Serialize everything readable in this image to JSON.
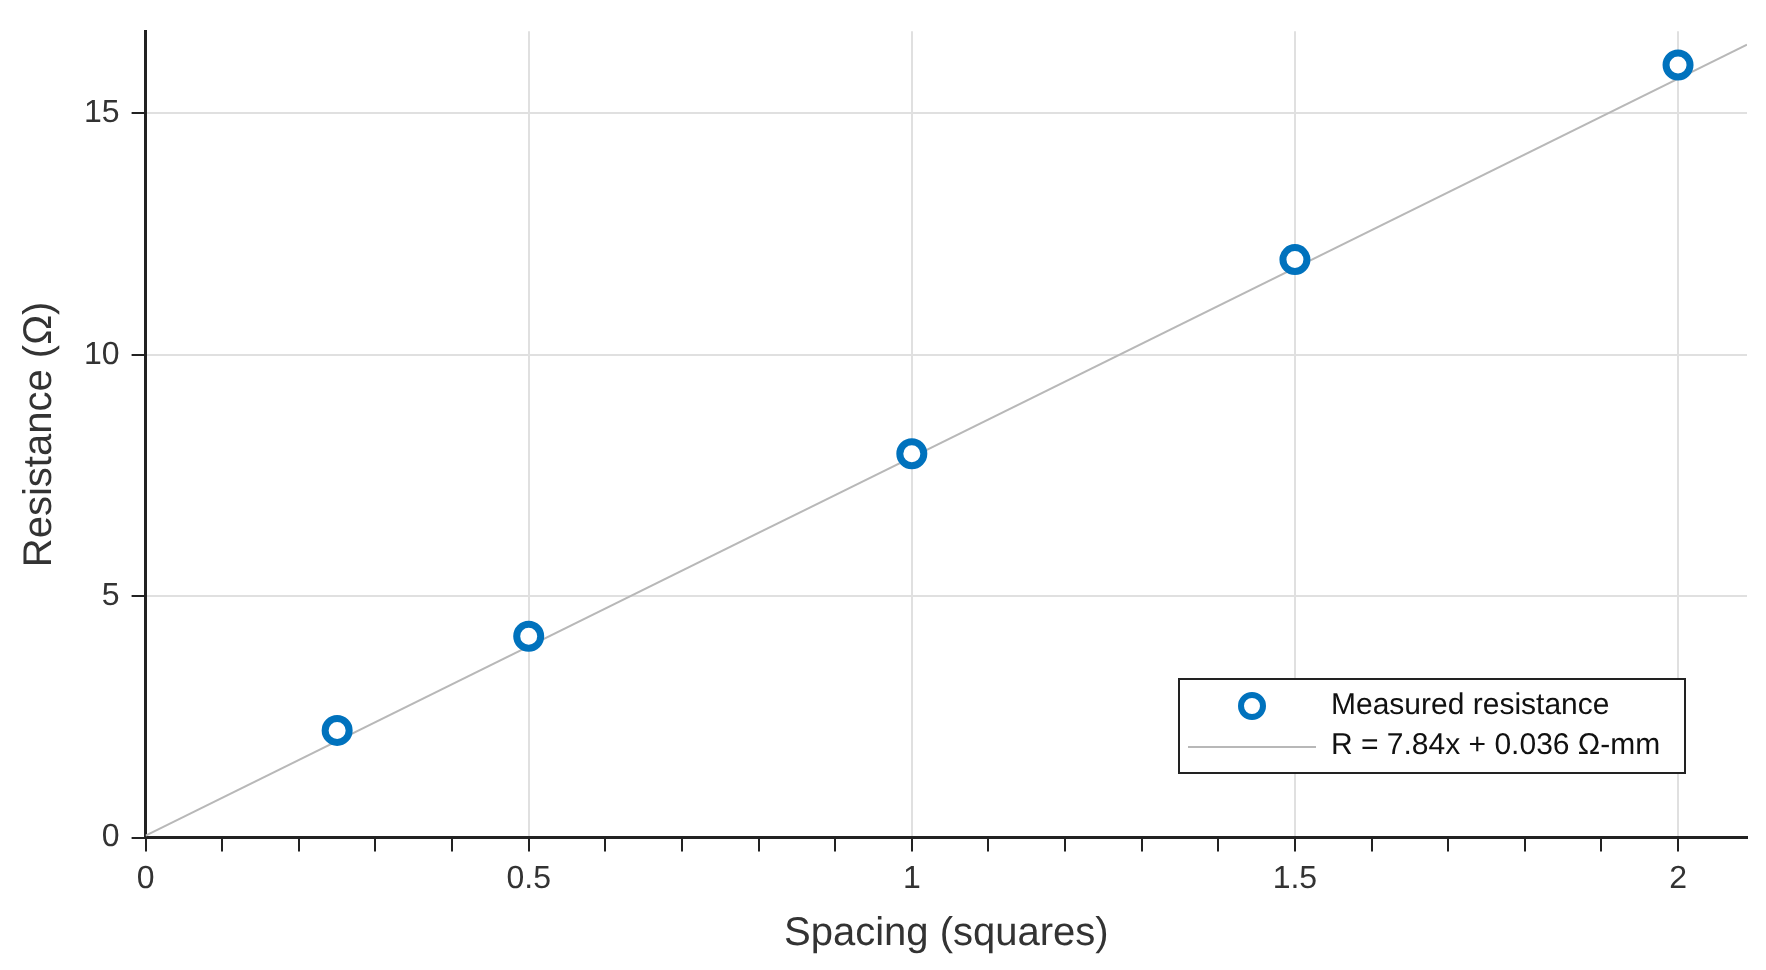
{
  "chart_data": {
    "type": "scatter",
    "xlabel": "Spacing (squares)",
    "ylabel": "Resistance (Ω)",
    "xlim": [
      0,
      2.09
    ],
    "ylim": [
      0,
      16.7
    ],
    "xticks": [
      0,
      {
        "value": 0.1,
        "label": null
      },
      {
        "value": 0.2,
        "label": null
      },
      {
        "value": 0.3,
        "label": null
      },
      {
        "value": 0.4,
        "label": null
      },
      0.5,
      {
        "value": 0.6,
        "label": null
      },
      {
        "value": 0.7,
        "label": null
      },
      {
        "value": 0.8,
        "label": null
      },
      {
        "value": 0.9,
        "label": null
      },
      1,
      {
        "value": 1.1,
        "label": null
      },
      {
        "value": 1.2,
        "label": null
      },
      {
        "value": 1.3,
        "label": null
      },
      {
        "value": 1.4,
        "label": null
      },
      1.5,
      {
        "value": 1.6,
        "label": null
      },
      {
        "value": 1.7,
        "label": null
      },
      {
        "value": 1.8,
        "label": null
      },
      {
        "value": 1.9,
        "label": null
      },
      2
    ],
    "yticks": [
      0,
      5,
      10,
      15
    ],
    "grid": true,
    "legend": "bottom right",
    "marker": "circle",
    "series": [
      {
        "name": "Measured resistance",
        "type": "scatter",
        "color": "#0072bd",
        "x": [
          0.25,
          0.5,
          1,
          1.5,
          2
        ],
        "values": [
          2.22,
          4.17,
          7.95,
          11.97,
          16.0
        ]
      },
      {
        "name": "R = 7.84x + 0.036 Ω-mm",
        "type": "line",
        "color": "#b8b8b8",
        "line_style": "solid",
        "marker": "none",
        "x": [
          0,
          2.09
        ],
        "values": [
          0.04,
          16.42
        ]
      }
    ]
  }
}
